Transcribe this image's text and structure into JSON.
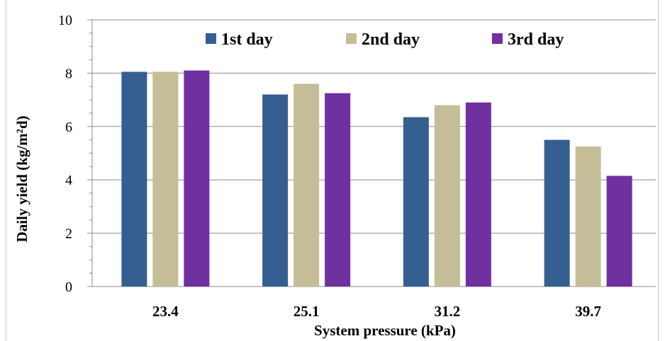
{
  "chart_data": {
    "type": "bar",
    "categories": [
      "23.4",
      "25.1",
      "31.2",
      "39.7"
    ],
    "series": [
      {
        "name": "1st day",
        "values": [
          8.05,
          7.2,
          6.35,
          5.5
        ],
        "color": "#365f91"
      },
      {
        "name": "2nd day",
        "values": [
          8.05,
          7.6,
          6.8,
          5.25
        ],
        "color": "#c4bd97"
      },
      {
        "name": "3rd day",
        "values": [
          8.1,
          7.25,
          6.9,
          4.15
        ],
        "color": "#7030a0"
      }
    ],
    "xlabel": "System pressure (kPa)",
    "ylabel": "Daily yield (kg/m²d)",
    "ylim": [
      0,
      10
    ],
    "yticks": [
      0,
      2,
      4,
      6,
      8,
      10
    ],
    "grid": true,
    "legend_position": "top"
  }
}
